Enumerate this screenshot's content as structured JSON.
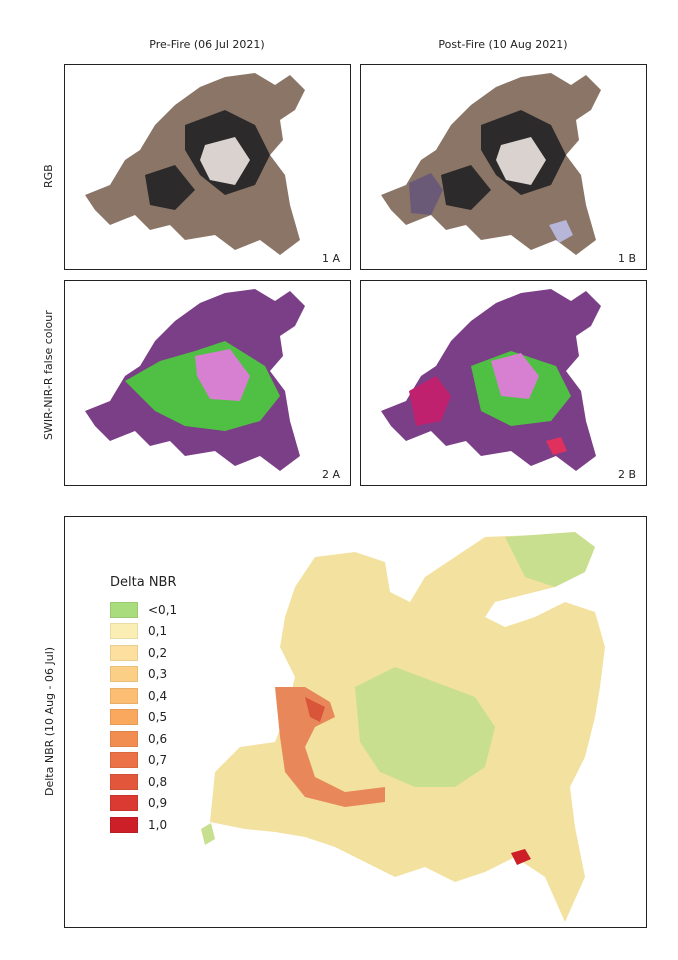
{
  "columns": {
    "pre": "Pre-Fire (06 Jul 2021)",
    "post": "Post-Fire (10 Aug 2021)"
  },
  "rows": {
    "rgb": "RGB",
    "false_colour": "SWIR-NIR-R false colour",
    "delta": "Delta NBR (10 Aug - 06 Jul)"
  },
  "panels": {
    "p1a": "1 A",
    "p1b": "1 B",
    "p2a": "2 A",
    "p2b": "2 B"
  },
  "legend": {
    "title": "Delta NBR",
    "classes": [
      {
        "label": "<0,1",
        "color": "#a9dc7c"
      },
      {
        "label": "0,1",
        "color": "#fbeeb5"
      },
      {
        "label": "0,2",
        "color": "#fde0a0"
      },
      {
        "label": "0,3",
        "color": "#fccf86"
      },
      {
        "label": "0,4",
        "color": "#fbbe72"
      },
      {
        "label": "0,5",
        "color": "#f9a85e"
      },
      {
        "label": "0,6",
        "color": "#f28d52"
      },
      {
        "label": "0,7",
        "color": "#eb7146"
      },
      {
        "label": "0,8",
        "color": "#e2573c"
      },
      {
        "label": "0,9",
        "color": "#da3a31"
      },
      {
        "label": "1,0",
        "color": "#cc1f27"
      }
    ]
  },
  "colors": {
    "rgb_base": "#8a7567",
    "rgb_dark": "#2c2a2a",
    "rgb_light": "#d9d2cf",
    "fc_purple": "#7a3f86",
    "fc_green": "#4fc043",
    "fc_pink": "#d77fd0",
    "fc_burn": "#c0216f",
    "dnbr_base": "#f3e1a0",
    "dnbr_green": "#c8df8f",
    "dnbr_burn": "#e8885a",
    "dnbr_hot": "#cc1f27"
  }
}
